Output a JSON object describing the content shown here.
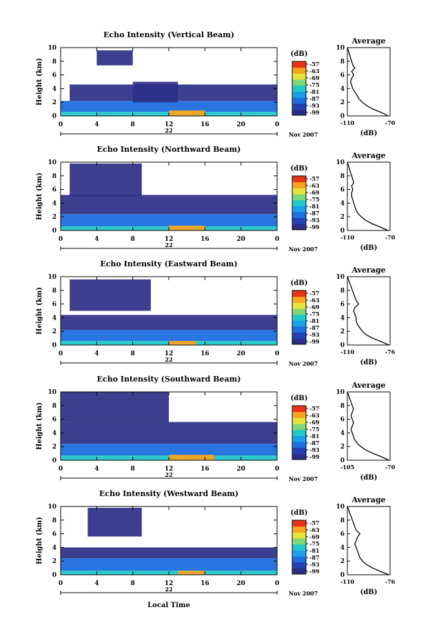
{
  "figure": {
    "xlabel": "Local Time",
    "day_label": "22",
    "month_label": "Nov 2007"
  },
  "chart_data": [
    {
      "type": "heatmap",
      "title": "Echo Intensity (Vertical Beam)",
      "ylabel": "Height (km)",
      "xlabel": "Local Time",
      "x_ticks": [
        "0",
        "4",
        "8",
        "12",
        "16",
        "20",
        "0"
      ],
      "y_ticks": [
        "0",
        "2",
        "4",
        "6",
        "8",
        "10"
      ],
      "xlim": [
        0,
        24
      ],
      "ylim": [
        0,
        10
      ],
      "colorbar": {
        "unit": "(dB)",
        "ticks": [
          "-57",
          "-63",
          "-69",
          "-75",
          "-81",
          "-87",
          "-93",
          "-99"
        ]
      },
      "profile": {
        "title": "Average",
        "xlabel": "(dB)",
        "x_ticks": [
          "-110",
          "-70"
        ],
        "xlim": [
          -110,
          -70
        ]
      },
      "layers": [
        {
          "t0": 0,
          "t1": 24,
          "h0": 0.0,
          "h1": 0.6,
          "level": "high"
        },
        {
          "t0": 0,
          "t1": 24,
          "h0": 0.6,
          "h1": 2.2,
          "level": "medium"
        },
        {
          "t0": 1,
          "t1": 24,
          "h0": 2.2,
          "h1": 4.6,
          "level": "low"
        },
        {
          "t0": 4,
          "t1": 8,
          "h0": 7.4,
          "h1": 9.6,
          "level": "low"
        },
        {
          "t0": 8,
          "t1": 13,
          "h0": 2.0,
          "h1": 5.0,
          "level": "low"
        },
        {
          "t0": 12,
          "t1": 16,
          "h0": 0.0,
          "h1": 0.8,
          "level": "peak"
        }
      ]
    },
    {
      "type": "heatmap",
      "title": "Echo Intensity (Northward Beam)",
      "ylabel": "Height (km)",
      "xlabel": "Local Time",
      "x_ticks": [
        "0",
        "4",
        "8",
        "12",
        "16",
        "20",
        "0"
      ],
      "y_ticks": [
        "0",
        "2",
        "4",
        "6",
        "8",
        "10"
      ],
      "xlim": [
        0,
        24
      ],
      "ylim": [
        0,
        10
      ],
      "colorbar": {
        "unit": "(dB)",
        "ticks": [
          "-57",
          "-63",
          "-69",
          "-75",
          "-81",
          "-87",
          "-93",
          "-99"
        ]
      },
      "profile": {
        "title": "Average",
        "xlabel": "(dB)",
        "x_ticks": [
          "-110",
          "-70"
        ],
        "xlim": [
          -110,
          -70
        ]
      },
      "layers": [
        {
          "t0": 0,
          "t1": 24,
          "h0": 0.0,
          "h1": 0.6,
          "level": "high"
        },
        {
          "t0": 0,
          "t1": 24,
          "h0": 0.6,
          "h1": 2.4,
          "level": "medium"
        },
        {
          "t0": 0,
          "t1": 24,
          "h0": 2.4,
          "h1": 5.2,
          "level": "low"
        },
        {
          "t0": 1,
          "t1": 9,
          "h0": 5.0,
          "h1": 9.8,
          "level": "low"
        },
        {
          "t0": 12,
          "t1": 16,
          "h0": 0.0,
          "h1": 0.7,
          "level": "peak"
        }
      ]
    },
    {
      "type": "heatmap",
      "title": "Echo Intensity (Eastward Beam)",
      "ylabel": "Height (km)",
      "xlabel": "Local Time",
      "x_ticks": [
        "0",
        "4",
        "8",
        "12",
        "16",
        "20",
        "0"
      ],
      "y_ticks": [
        "0",
        "2",
        "4",
        "6",
        "8",
        "10"
      ],
      "xlim": [
        0,
        24
      ],
      "ylim": [
        0,
        10
      ],
      "colorbar": {
        "unit": "(dB)",
        "ticks": [
          "-57",
          "-63",
          "-69",
          "-75",
          "-81",
          "-87",
          "-93",
          "-99"
        ]
      },
      "profile": {
        "title": "Average",
        "xlabel": "(dB)",
        "x_ticks": [
          "-110",
          "-76"
        ],
        "xlim": [
          -110,
          -76
        ]
      },
      "layers": [
        {
          "t0": 0,
          "t1": 24,
          "h0": 0.0,
          "h1": 0.6,
          "level": "high"
        },
        {
          "t0": 0,
          "t1": 24,
          "h0": 0.6,
          "h1": 2.2,
          "level": "medium"
        },
        {
          "t0": 0,
          "t1": 24,
          "h0": 2.2,
          "h1": 4.4,
          "level": "low"
        },
        {
          "t0": 1,
          "t1": 10,
          "h0": 5.0,
          "h1": 9.6,
          "level": "low"
        },
        {
          "t0": 12,
          "t1": 15,
          "h0": 0.0,
          "h1": 0.6,
          "level": "peak"
        }
      ]
    },
    {
      "type": "heatmap",
      "title": "Echo Intensity (Southward Beam)",
      "ylabel": "Height (km)",
      "xlabel": "Local Time",
      "x_ticks": [
        "0",
        "4",
        "8",
        "12",
        "16",
        "20",
        "0"
      ],
      "y_ticks": [
        "0",
        "2",
        "4",
        "6",
        "8",
        "10"
      ],
      "xlim": [
        0,
        24
      ],
      "ylim": [
        0,
        10
      ],
      "colorbar": {
        "unit": "(dB)",
        "ticks": [
          "-57",
          "-63",
          "-69",
          "-75",
          "-81",
          "-87",
          "-93",
          "-99"
        ]
      },
      "profile": {
        "title": "Average",
        "xlabel": "(dB)",
        "x_ticks": [
          "-105",
          "-70"
        ],
        "xlim": [
          -105,
          -70
        ]
      },
      "layers": [
        {
          "t0": 0,
          "t1": 24,
          "h0": 0.0,
          "h1": 0.7,
          "level": "high"
        },
        {
          "t0": 0,
          "t1": 24,
          "h0": 0.7,
          "h1": 2.4,
          "level": "medium"
        },
        {
          "t0": 0,
          "t1": 24,
          "h0": 2.4,
          "h1": 5.6,
          "level": "low"
        },
        {
          "t0": 0,
          "t1": 12,
          "h0": 5.6,
          "h1": 10.0,
          "level": "low"
        },
        {
          "t0": 12,
          "t1": 17,
          "h0": 0.0,
          "h1": 0.8,
          "level": "peak"
        }
      ]
    },
    {
      "type": "heatmap",
      "title": "Echo Intensity (Westward Beam)",
      "ylabel": "Height (km)",
      "xlabel": "Local Time",
      "x_ticks": [
        "0",
        "4",
        "8",
        "12",
        "16",
        "20",
        "0"
      ],
      "y_ticks": [
        "0",
        "2",
        "4",
        "6",
        "8",
        "10"
      ],
      "xlim": [
        0,
        24
      ],
      "ylim": [
        0,
        10
      ],
      "colorbar": {
        "unit": "(dB)",
        "ticks": [
          "-57",
          "-63",
          "-69",
          "-75",
          "-81",
          "-87",
          "-93",
          "-99"
        ]
      },
      "profile": {
        "title": "Average",
        "xlabel": "(dB)",
        "x_ticks": [
          "-110",
          "-76"
        ],
        "xlim": [
          -110,
          -76
        ]
      },
      "layers": [
        {
          "t0": 0,
          "t1": 24,
          "h0": 0.0,
          "h1": 0.6,
          "level": "high"
        },
        {
          "t0": 0,
          "t1": 24,
          "h0": 0.6,
          "h1": 2.4,
          "level": "medium"
        },
        {
          "t0": 0,
          "t1": 24,
          "h0": 2.4,
          "h1": 4.0,
          "level": "low"
        },
        {
          "t0": 3,
          "t1": 9,
          "h0": 5.6,
          "h1": 9.8,
          "level": "low"
        },
        {
          "t0": 13,
          "t1": 16,
          "h0": 0.0,
          "h1": 0.6,
          "level": "peak"
        }
      ]
    }
  ],
  "profiles": [
    {
      "h": [
        0,
        0.5,
        1,
        1.5,
        2,
        2.5,
        3,
        3.5,
        4,
        4.5,
        5,
        5.5,
        6,
        6.5,
        7,
        7.5,
        8,
        8.5,
        9,
        9.5,
        10
      ],
      "db": [
        -72,
        -78,
        -86,
        -92,
        -96,
        -99,
        -101,
        -103,
        -105,
        -106,
        -107,
        -106,
        -104,
        -106,
        -103,
        -105,
        -106,
        -107,
        -108,
        -109,
        -110
      ]
    },
    {
      "h": [
        0,
        0.5,
        1,
        1.5,
        2,
        2.5,
        3,
        3.5,
        4,
        4.5,
        5,
        5.5,
        6,
        6.5,
        7,
        7.5,
        8,
        8.5,
        9,
        9.5,
        10
      ],
      "db": [
        -72,
        -79,
        -87,
        -93,
        -97,
        -100,
        -102,
        -103,
        -104,
        -105,
        -106,
        -106,
        -105,
        -106,
        -104,
        -105,
        -106,
        -107,
        -108,
        -109,
        -110
      ]
    },
    {
      "h": [
        0,
        0.5,
        1,
        1.5,
        2,
        2.5,
        3,
        3.5,
        4,
        4.5,
        5,
        5.5,
        6,
        6.5,
        7,
        7.5,
        8,
        8.5,
        9,
        9.5,
        10
      ],
      "db": [
        -77,
        -83,
        -90,
        -95,
        -98,
        -100,
        -102,
        -103,
        -103,
        -104,
        -105,
        -104,
        -101,
        -103,
        -104,
        -105,
        -106,
        -107,
        -108,
        -109,
        -110
      ]
    },
    {
      "h": [
        0,
        0.5,
        1,
        1.5,
        2,
        2.5,
        3,
        3.5,
        4,
        4.5,
        5,
        5.5,
        6,
        6.5,
        7,
        7.5,
        8,
        8.5,
        9,
        9.5,
        10
      ],
      "db": [
        -71,
        -77,
        -84,
        -90,
        -94,
        -97,
        -99,
        -100,
        -101,
        -102,
        -101,
        -100,
        -101,
        -102,
        -101,
        -100,
        -101,
        -102,
        -103,
        -104,
        -105
      ]
    },
    {
      "h": [
        0,
        0.5,
        1,
        1.5,
        2,
        2.5,
        3,
        3.5,
        4,
        4.5,
        5,
        5.5,
        6,
        6.5,
        7,
        7.5,
        8,
        8.5,
        9,
        9.5,
        10
      ],
      "db": [
        -77,
        -84,
        -90,
        -95,
        -98,
        -100,
        -101,
        -102,
        -103,
        -104,
        -103,
        -102,
        -100,
        -103,
        -104,
        -105,
        -106,
        -107,
        -108,
        -109,
        -110
      ]
    }
  ],
  "colors": {
    "colormap": [
      "#2b2f86",
      "#2440b3",
      "#1e6ee0",
      "#1aa0e8",
      "#22c8c8",
      "#7fd878",
      "#e6e43a",
      "#f7a421",
      "#e8351a"
    ],
    "level_map": {
      "low": "#2b2f86",
      "medium": "#1e6ee0",
      "high": "#22c8c8",
      "peak": "#f7a421"
    }
  }
}
